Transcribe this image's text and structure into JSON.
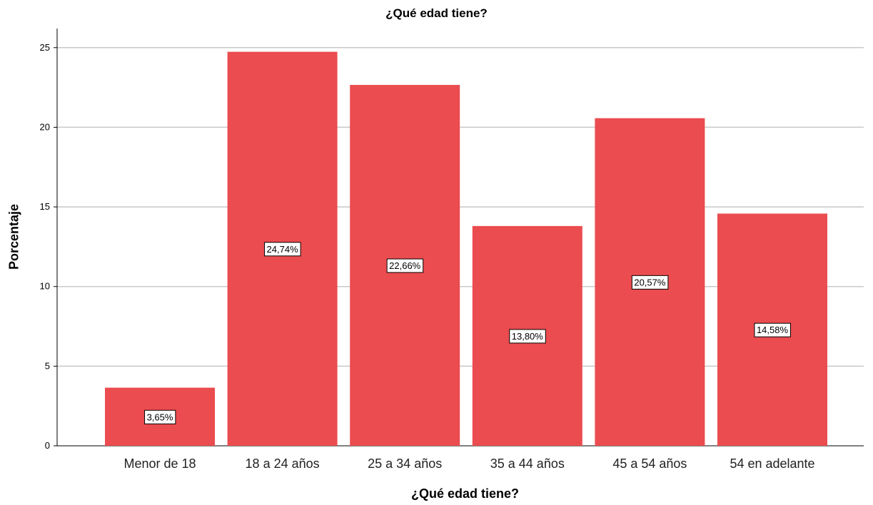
{
  "chart_data": {
    "type": "bar",
    "title": "¿Qué edad tiene?",
    "xlabel": "¿Qué edad tiene?",
    "ylabel": "Porcentaje",
    "categories": [
      "Menor de 18",
      "18 a 24 años",
      "25 a 34 años",
      "35 a 44 años",
      "45 a 54 años",
      "54 en adelante"
    ],
    "values": [
      3.65,
      24.74,
      22.66,
      13.8,
      20.57,
      14.58
    ],
    "data_labels": [
      "3,65%",
      "24,74%",
      "22,66%",
      "13,80%",
      "20,57%",
      "14,58%"
    ],
    "yticks": [
      0,
      5,
      10,
      15,
      20,
      25
    ],
    "ylim": [
      0,
      26.2
    ],
    "grid": true,
    "bar_color": "#EB4C4F"
  }
}
